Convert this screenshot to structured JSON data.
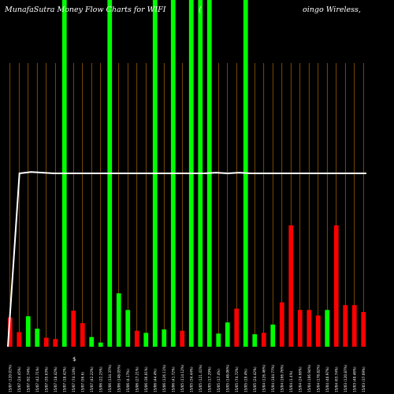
{
  "chart_data": {
    "type": "bar",
    "title_left": "MunafaSutra  Money Flow  Charts for WIFI",
    "title_mid": "(",
    "title_right": "oingo  Wireless,",
    "stray_label": "$",
    "colors": {
      "background": "#000000",
      "up": "#00ff00",
      "down": "#ff0000",
      "gridline": "#cc7a00",
      "line": "#ffffff"
    },
    "y_range": [
      0,
      500
    ],
    "line_values": [
      0,
      250,
      252,
      251,
      250,
      250,
      250,
      250,
      250,
      250,
      250,
      250,
      250,
      250,
      250,
      250,
      250,
      250,
      251,
      250,
      251,
      250,
      250,
      250,
      250,
      250,
      250,
      250,
      250,
      250,
      250,
      250
    ],
    "bars": [
      {
        "label": "15/07 (120.01%)",
        "value": 42,
        "color": "down",
        "full": false
      },
      {
        "label": "15/07 (24.45%)",
        "value": 21,
        "color": "down",
        "full": false
      },
      {
        "label": "15/07 (92.74%)",
        "value": 44,
        "color": "up",
        "full": false
      },
      {
        "label": "15/07 (42.71%)",
        "value": 26,
        "color": "up",
        "full": false
      },
      {
        "label": "15/07 (35.63%)",
        "value": 13,
        "color": "down",
        "full": false
      },
      {
        "label": "15/07 (18.42%)",
        "value": 11,
        "color": "down",
        "full": false
      },
      {
        "label": "15/07 (18.42%)",
        "value": 500,
        "color": "up",
        "full": true
      },
      {
        "label": "15/07 (74.14%)",
        "value": 52,
        "color": "down",
        "full": false
      },
      {
        "label": "15/07 (56.6)",
        "value": 34,
        "color": "down",
        "full": false
      },
      {
        "label": "15/07 (42.22%)",
        "value": 14,
        "color": "up",
        "full": false
      },
      {
        "label": "15/06 (22.25%)",
        "value": 6,
        "color": "up",
        "full": false
      },
      {
        "label": "15/06 (134.37%)",
        "value": 500,
        "color": "up",
        "full": true
      },
      {
        "label": "15/06 (148.05%)",
        "value": 77,
        "color": "up",
        "full": false
      },
      {
        "label": "15/06 (4.17%)",
        "value": 53,
        "color": "up",
        "full": false
      },
      {
        "label": "15/06 (27.21%)",
        "value": 23,
        "color": "down",
        "full": false
      },
      {
        "label": "15/06 (36.01%)",
        "value": 20,
        "color": "up",
        "full": false
      },
      {
        "label": "15/06 (44.4%)",
        "value": 500,
        "color": "up",
        "full": true
      },
      {
        "label": "15/06 (126.11%)",
        "value": 25,
        "color": "up",
        "full": false
      },
      {
        "label": "15/06 (41.72%)",
        "value": 500,
        "color": "up",
        "full": true
      },
      {
        "label": "15/05 (114.12%)",
        "value": 23,
        "color": "down",
        "full": false
      },
      {
        "label": "15/05 (34.44%)",
        "value": 500,
        "color": "up",
        "full": true
      },
      {
        "label": "15/05 (121.41%)",
        "value": 500,
        "color": "up",
        "full": true
      },
      {
        "label": "15/05 (17.29%)",
        "value": 500,
        "color": "up",
        "full": true
      },
      {
        "label": "15/05 (17.4%)",
        "value": 19,
        "color": "up",
        "full": false
      },
      {
        "label": "15/05 (148.06%)",
        "value": 35,
        "color": "up",
        "full": false
      },
      {
        "label": "15/05 (74.72%)",
        "value": 55,
        "color": "down",
        "full": false
      },
      {
        "label": "15/05 (19.4%)",
        "value": 500,
        "color": "up",
        "full": true
      },
      {
        "label": "15/05 (24.42%)",
        "value": 18,
        "color": "up",
        "full": false
      },
      {
        "label": "15/04 (126.46%)",
        "value": 20,
        "color": "down",
        "full": false
      },
      {
        "label": "15/04 (104.77%)",
        "value": 32,
        "color": "up",
        "full": false
      },
      {
        "label": "15/04 (166.76%)",
        "value": 64,
        "color": "down",
        "full": false
      },
      {
        "label": "15/04 (1.4%)",
        "value": 175,
        "color": "down",
        "full": false
      },
      {
        "label": "15/04 (24.66%)",
        "value": 53,
        "color": "down",
        "full": false
      },
      {
        "label": "15/04 (106.94%)",
        "value": 53,
        "color": "down",
        "full": false
      },
      {
        "label": "15/04 (178.82%)",
        "value": 45,
        "color": "down",
        "full": false
      },
      {
        "label": "15/04 (40.97%)",
        "value": 53,
        "color": "up",
        "full": false
      },
      {
        "label": "15/04 (63.74%)",
        "value": 175,
        "color": "down",
        "full": false
      },
      {
        "label": "15/03 (120.87%)",
        "value": 60,
        "color": "down",
        "full": false
      },
      {
        "label": "15/03 (40.46%)",
        "value": 60,
        "color": "down",
        "full": false
      },
      {
        "label": "15/03 (37.69%)",
        "value": 50,
        "color": "down",
        "full": false
      }
    ]
  }
}
